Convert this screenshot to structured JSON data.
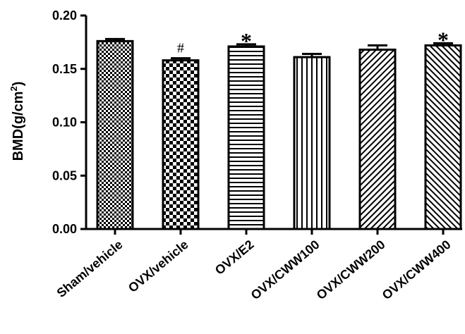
{
  "chart_data": {
    "type": "bar",
    "categories": [
      "Sham/vehicle",
      "OVX/vehicle",
      "OVX/E2",
      "OVX/CWW100",
      "OVX/CWW200",
      "OVX/CWW400"
    ],
    "values": [
      0.176,
      0.158,
      0.171,
      0.161,
      0.168,
      0.172
    ],
    "errors": [
      0.002,
      0.002,
      0.002,
      0.003,
      0.004,
      0.002
    ],
    "patterns": [
      "fine-check",
      "checker",
      "horizontal",
      "vertical",
      "diag-up",
      "diag-down"
    ],
    "annotations": [
      "",
      "#",
      "*",
      "",
      "",
      "*"
    ],
    "title": "",
    "xlabel": "",
    "ylabel": {
      "main": "BMD(g/cm",
      "sup": "2",
      "close": ")"
    },
    "ylim": [
      0,
      0.2
    ],
    "yticks": [
      "0.00",
      "0.05",
      "0.10",
      "0.15",
      "0.20"
    ],
    "ytick_values": [
      0,
      0.05,
      0.1,
      0.15,
      0.2
    ],
    "grid": false,
    "legend": "none",
    "bar_color": "#000000"
  }
}
